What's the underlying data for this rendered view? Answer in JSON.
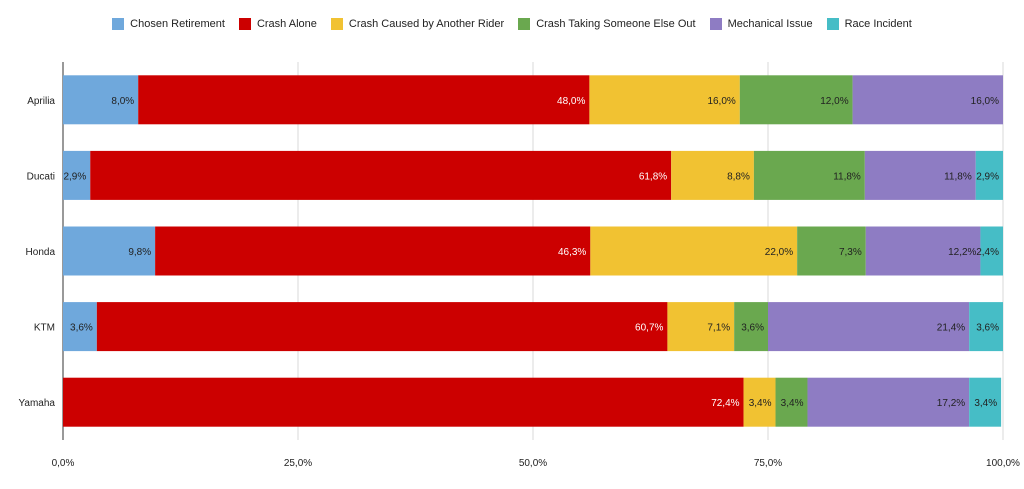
{
  "chart_data": {
    "type": "bar",
    "orientation": "horizontal",
    "stacked": "percent",
    "title": "",
    "xlabel": "",
    "ylabel": "",
    "xlim": [
      0,
      100
    ],
    "x_ticks": [
      "0,0%",
      "25,0%",
      "50,0%",
      "75,0%",
      "100,0%"
    ],
    "x_tick_values": [
      0,
      25,
      50,
      75,
      100
    ],
    "grid": true,
    "legend_position": "top",
    "categories": [
      "Aprilia",
      "Ducati",
      "Honda",
      "KTM",
      "Yamaha"
    ],
    "series": [
      {
        "name": "Chosen Retirement",
        "color": "#6fa8dc",
        "label_color": "#222222",
        "values": [
          8.0,
          2.9,
          9.8,
          3.6,
          0
        ]
      },
      {
        "name": "Crash Alone",
        "color": "#cc0000",
        "label_color": "#ffffff",
        "values": [
          48.0,
          61.8,
          46.3,
          60.7,
          72.4
        ]
      },
      {
        "name": "Crash Caused by Another Rider",
        "color": "#f1c232",
        "label_color": "#222222",
        "values": [
          16.0,
          8.8,
          22.0,
          7.1,
          3.4
        ]
      },
      {
        "name": "Crash Taking Someone Else Out",
        "color": "#6aa84f",
        "label_color": "#222222",
        "values": [
          12.0,
          11.8,
          7.3,
          3.6,
          3.4
        ]
      },
      {
        "name": "Mechanical Issue",
        "color": "#8e7cc3",
        "label_color": "#222222",
        "values": [
          16.0,
          11.8,
          12.2,
          21.4,
          17.2
        ]
      },
      {
        "name": "Race Incident",
        "color": "#46bdc6",
        "label_color": "#222222",
        "values": [
          0,
          2.9,
          2.4,
          3.6,
          3.4
        ]
      }
    ]
  }
}
